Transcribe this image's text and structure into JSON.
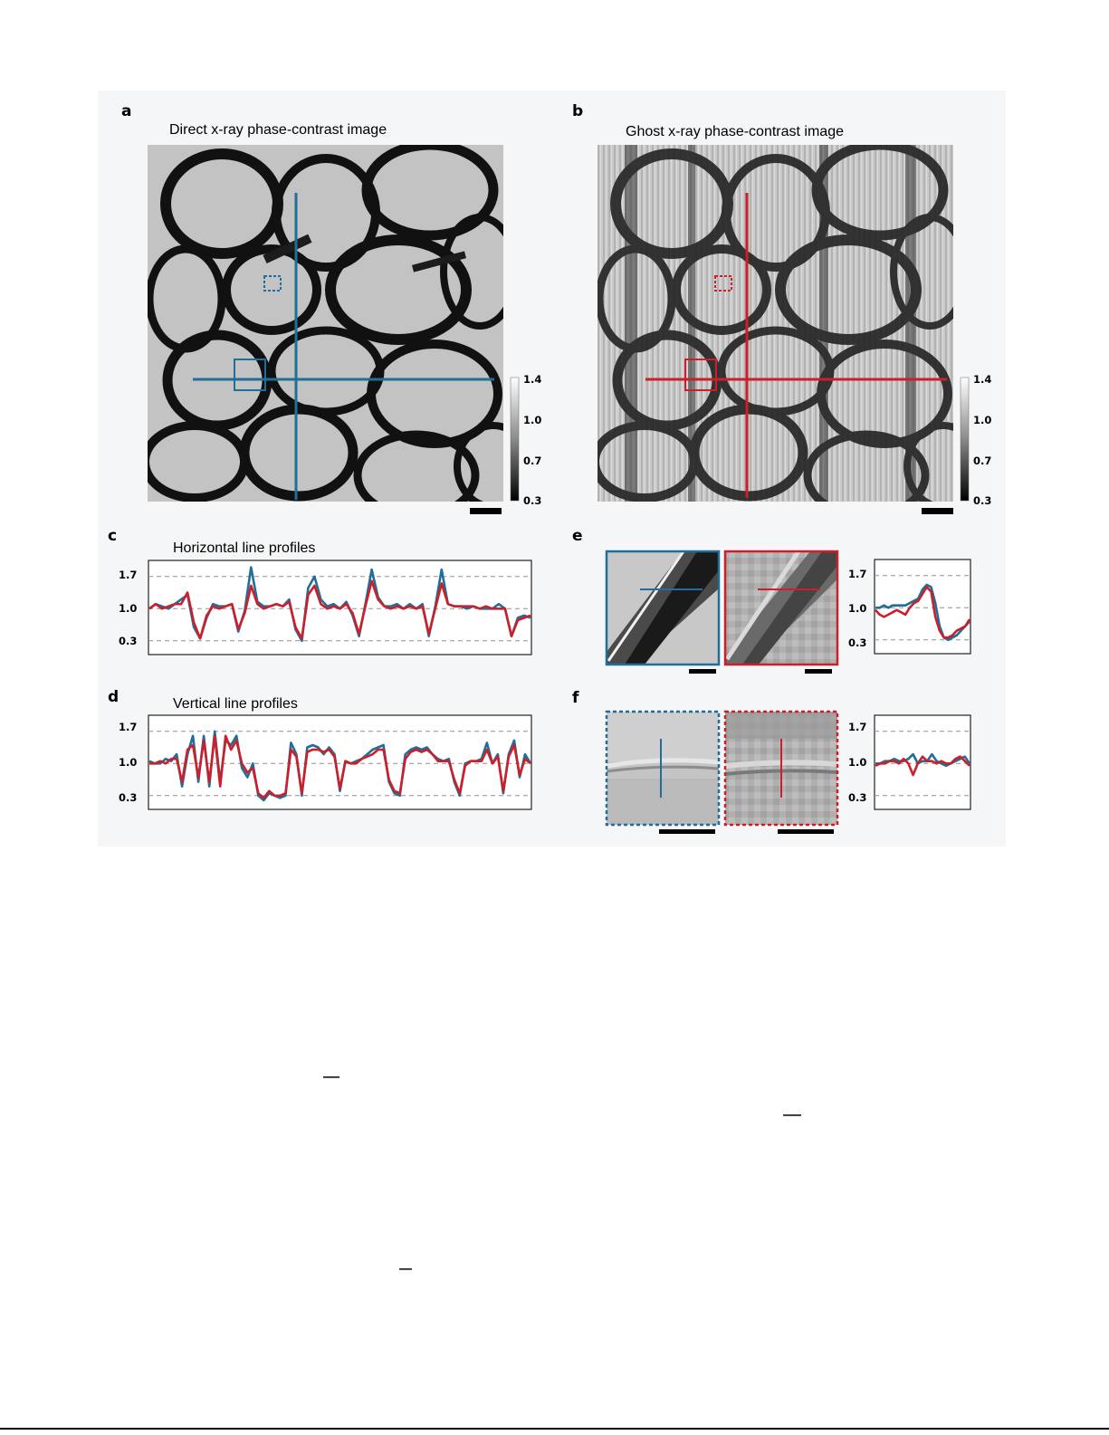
{
  "figure": {
    "colors": {
      "direct": "#1f6f9a",
      "ghost": "#cc1f2a",
      "grid": "#909090",
      "panel_bg": "#f5f6f7"
    },
    "panels": {
      "a": {
        "label": "a",
        "title": "Direct x-ray phase-contrast image",
        "colorbar_ticks": [
          "1.4",
          "1.0",
          "0.7",
          "0.3"
        ]
      },
      "b": {
        "label": "b",
        "title": "Ghost x-ray phase-contrast image",
        "colorbar_ticks": [
          "1.4",
          "1.0",
          "0.7",
          "0.3"
        ]
      },
      "c": {
        "label": "c",
        "title": "Horizontal line profiles",
        "yticks": [
          "1.7",
          "1.0",
          "0.3"
        ]
      },
      "d": {
        "label": "d",
        "title": "Vertical line profiles",
        "yticks": [
          "1.7",
          "1.0",
          "0.3"
        ]
      },
      "e": {
        "label": "e",
        "yticks": [
          "1.7",
          "1.0",
          "0.3"
        ]
      },
      "f": {
        "label": "f",
        "yticks": [
          "1.7",
          "1.0",
          "0.3"
        ]
      }
    }
  },
  "chart_data": [
    {
      "panel": "c",
      "type": "line",
      "title": "Horizontal line profiles",
      "ylim": [
        0.0,
        2.05
      ],
      "gridlines": [
        1.7,
        1.0,
        0.3
      ],
      "grid": "dashed",
      "x_points": 61,
      "series": [
        {
          "color_key": "direct",
          "values": [
            1.0,
            1.1,
            1.05,
            1.0,
            1.1,
            1.2,
            1.3,
            0.6,
            0.35,
            0.8,
            1.1,
            1.05,
            1.05,
            1.1,
            0.5,
            0.95,
            1.9,
            1.15,
            1.05,
            1.05,
            1.1,
            1.05,
            1.2,
            0.55,
            0.3,
            1.45,
            1.7,
            1.2,
            1.05,
            1.1,
            1.0,
            1.15,
            0.85,
            0.4,
            1.1,
            1.85,
            1.25,
            1.05,
            1.05,
            1.1,
            1.0,
            1.1,
            1.0,
            1.1,
            0.4,
            1.05,
            1.85,
            1.1,
            1.05,
            1.05,
            1.0,
            1.05,
            1.0,
            1.0,
            1.0,
            1.1,
            1.0,
            0.4,
            0.8,
            0.85,
            0.8
          ]
        },
        {
          "color_key": "ghost",
          "values": [
            1.0,
            1.1,
            1.0,
            1.05,
            1.1,
            1.1,
            1.35,
            0.7,
            0.35,
            0.85,
            1.05,
            1.0,
            1.05,
            1.1,
            0.55,
            0.9,
            1.5,
            1.1,
            1.0,
            1.05,
            1.1,
            1.05,
            1.15,
            0.6,
            0.35,
            1.3,
            1.5,
            1.1,
            1.0,
            1.05,
            1.0,
            1.1,
            0.9,
            0.45,
            1.05,
            1.6,
            1.2,
            1.05,
            1.0,
            1.05,
            1.0,
            1.05,
            1.0,
            1.05,
            0.45,
            1.0,
            1.55,
            1.1,
            1.05,
            1.05,
            1.05,
            1.05,
            1.0,
            1.05,
            1.0,
            1.0,
            1.0,
            0.4,
            0.75,
            0.8,
            0.85
          ]
        }
      ]
    },
    {
      "panel": "d",
      "type": "line",
      "title": "Vertical line profiles",
      "ylim": [
        0.0,
        2.05
      ],
      "gridlines": [
        1.7,
        1.0,
        0.3
      ],
      "grid": "dashed",
      "x_points": 71,
      "series": [
        {
          "color_key": "direct",
          "values": [
            1.05,
            1.0,
            1.0,
            1.1,
            1.05,
            1.2,
            0.5,
            1.2,
            1.6,
            0.6,
            1.6,
            0.5,
            1.7,
            0.6,
            1.5,
            1.4,
            1.6,
            0.9,
            0.7,
            1.0,
            0.3,
            0.2,
            0.35,
            0.3,
            0.25,
            0.3,
            1.45,
            1.2,
            0.3,
            1.35,
            1.4,
            1.35,
            1.2,
            1.35,
            1.2,
            0.4,
            1.05,
            1.0,
            1.05,
            1.1,
            1.2,
            1.3,
            1.35,
            1.4,
            0.6,
            0.35,
            0.3,
            1.2,
            1.3,
            1.35,
            1.3,
            1.35,
            1.2,
            1.1,
            1.05,
            1.1,
            0.6,
            0.3,
            1.0,
            1.05,
            1.05,
            1.1,
            1.45,
            1.0,
            1.2,
            0.35,
            1.2,
            1.5,
            0.7,
            1.2,
            1.0
          ]
        },
        {
          "color_key": "ghost",
          "values": [
            1.0,
            1.0,
            1.05,
            1.0,
            1.1,
            1.1,
            0.6,
            1.3,
            1.4,
            0.7,
            1.5,
            0.6,
            1.6,
            0.5,
            1.6,
            1.3,
            1.5,
            1.0,
            0.8,
            0.9,
            0.35,
            0.25,
            0.4,
            0.3,
            0.3,
            0.35,
            1.3,
            1.15,
            0.35,
            1.25,
            1.3,
            1.3,
            1.25,
            1.3,
            1.15,
            0.45,
            1.05,
            1.0,
            1.0,
            1.1,
            1.15,
            1.2,
            1.3,
            1.3,
            0.65,
            0.4,
            0.35,
            1.1,
            1.25,
            1.3,
            1.25,
            1.3,
            1.2,
            1.05,
            1.05,
            1.05,
            0.65,
            0.35,
            0.95,
            1.05,
            1.05,
            1.05,
            1.3,
            1.0,
            1.15,
            0.4,
            1.15,
            1.4,
            0.75,
            1.1,
            1.0
          ]
        }
      ]
    },
    {
      "panel": "e",
      "type": "line",
      "ylim": [
        0.0,
        2.05
      ],
      "gridlines": [
        1.7,
        1.0,
        0.3
      ],
      "grid": "dashed",
      "x_points": 23,
      "series": [
        {
          "color_key": "direct",
          "values": [
            1.0,
            1.0,
            1.05,
            1.0,
            1.05,
            1.05,
            1.05,
            1.05,
            1.1,
            1.15,
            1.2,
            1.4,
            1.5,
            1.45,
            1.1,
            0.6,
            0.35,
            0.3,
            0.35,
            0.4,
            0.5,
            0.6,
            0.7
          ]
        },
        {
          "color_key": "ghost",
          "values": [
            0.95,
            0.85,
            0.8,
            0.85,
            0.9,
            0.95,
            0.9,
            0.85,
            1.0,
            1.1,
            1.15,
            1.3,
            1.45,
            1.35,
            0.8,
            0.5,
            0.35,
            0.35,
            0.4,
            0.5,
            0.55,
            0.6,
            0.75
          ]
        }
      ]
    },
    {
      "panel": "f",
      "type": "line",
      "ylim": [
        0.0,
        2.05
      ],
      "gridlines": [
        1.7,
        1.0,
        0.3
      ],
      "grid": "dashed",
      "x_points": 21,
      "series": [
        {
          "color_key": "direct",
          "values": [
            1.0,
            1.0,
            1.05,
            1.05,
            1.1,
            1.05,
            1.05,
            1.1,
            1.2,
            1.0,
            1.05,
            1.05,
            1.2,
            1.05,
            1.0,
            0.95,
            1.0,
            1.05,
            1.1,
            1.15,
            1.0
          ]
        },
        {
          "color_key": "ghost",
          "values": [
            0.95,
            1.0,
            1.0,
            1.05,
            1.05,
            1.0,
            1.1,
            1.0,
            0.75,
            1.0,
            1.15,
            1.05,
            1.05,
            1.0,
            1.05,
            1.0,
            1.0,
            1.1,
            1.15,
            1.05,
            0.95
          ]
        }
      ]
    }
  ]
}
